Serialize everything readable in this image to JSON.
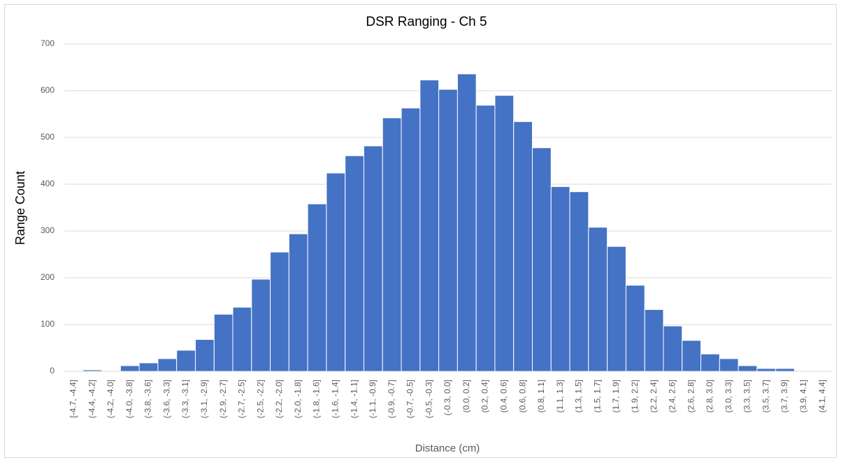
{
  "chart_data": {
    "type": "bar",
    "title": "DSR Ranging - Ch 5",
    "x_label": "Distance (cm)",
    "y_label": "Range Count",
    "categories": [
      "[-4.7, -4.4]",
      "(-4.4, -4.2]",
      "(-4.2, -4.0]",
      "(-4.0, -3.8]",
      "(-3.8, -3.6]",
      "(-3.6, -3.3]",
      "(-3.3, -3.1]",
      "(-3.1, -2.9]",
      "(-2.9, -2.7]",
      "(-2.7, -2.5]",
      "(-2.5, -2.2]",
      "(-2.2, -2.0]",
      "(-2.0, -1.8]",
      "(-1.8, -1.6]",
      "(-1.6, -1.4]",
      "(-1.4, -1.1]",
      "(-1.1, -0.9]",
      "(-0.9, -0.7]",
      "(-0.7, -0.5]",
      "(-0.5, -0.3]",
      "(-0.3, 0.0]",
      "(0.0, 0.2]",
      "(0.2, 0.4]",
      "(0.4, 0.6]",
      "(0.6, 0.8]",
      "(0.8, 1.1]",
      "(1.1, 1.3]",
      "(1.3, 1.5]",
      "(1.5, 1.7]",
      "(1.7, 1.9]",
      "(1.9, 2.2]",
      "(2.2, 2.4]",
      "(2.4, 2.6]",
      "(2.6, 2.8]",
      "(2.8, 3.0]",
      "(3.0, 3.3]",
      "(3.3, 3.5]",
      "(3.5, 3.7]",
      "(3.7, 3.9]",
      "(3.9, 4.1]",
      "(4.1, 4.4]"
    ],
    "values": [
      0,
      3,
      0,
      12,
      18,
      27,
      45,
      68,
      122,
      137,
      197,
      255,
      294,
      358,
      424,
      461,
      482,
      542,
      563,
      623,
      603,
      636,
      569,
      590,
      534,
      478,
      395,
      384,
      308,
      267,
      184,
      132,
      97,
      66,
      37,
      27,
      12,
      6,
      6,
      0,
      0
    ],
    "color": "#4472c4",
    "ylim": [
      0,
      700
    ],
    "yticks": [
      0,
      100,
      200,
      300,
      400,
      500,
      600,
      700
    ],
    "grid": true
  }
}
